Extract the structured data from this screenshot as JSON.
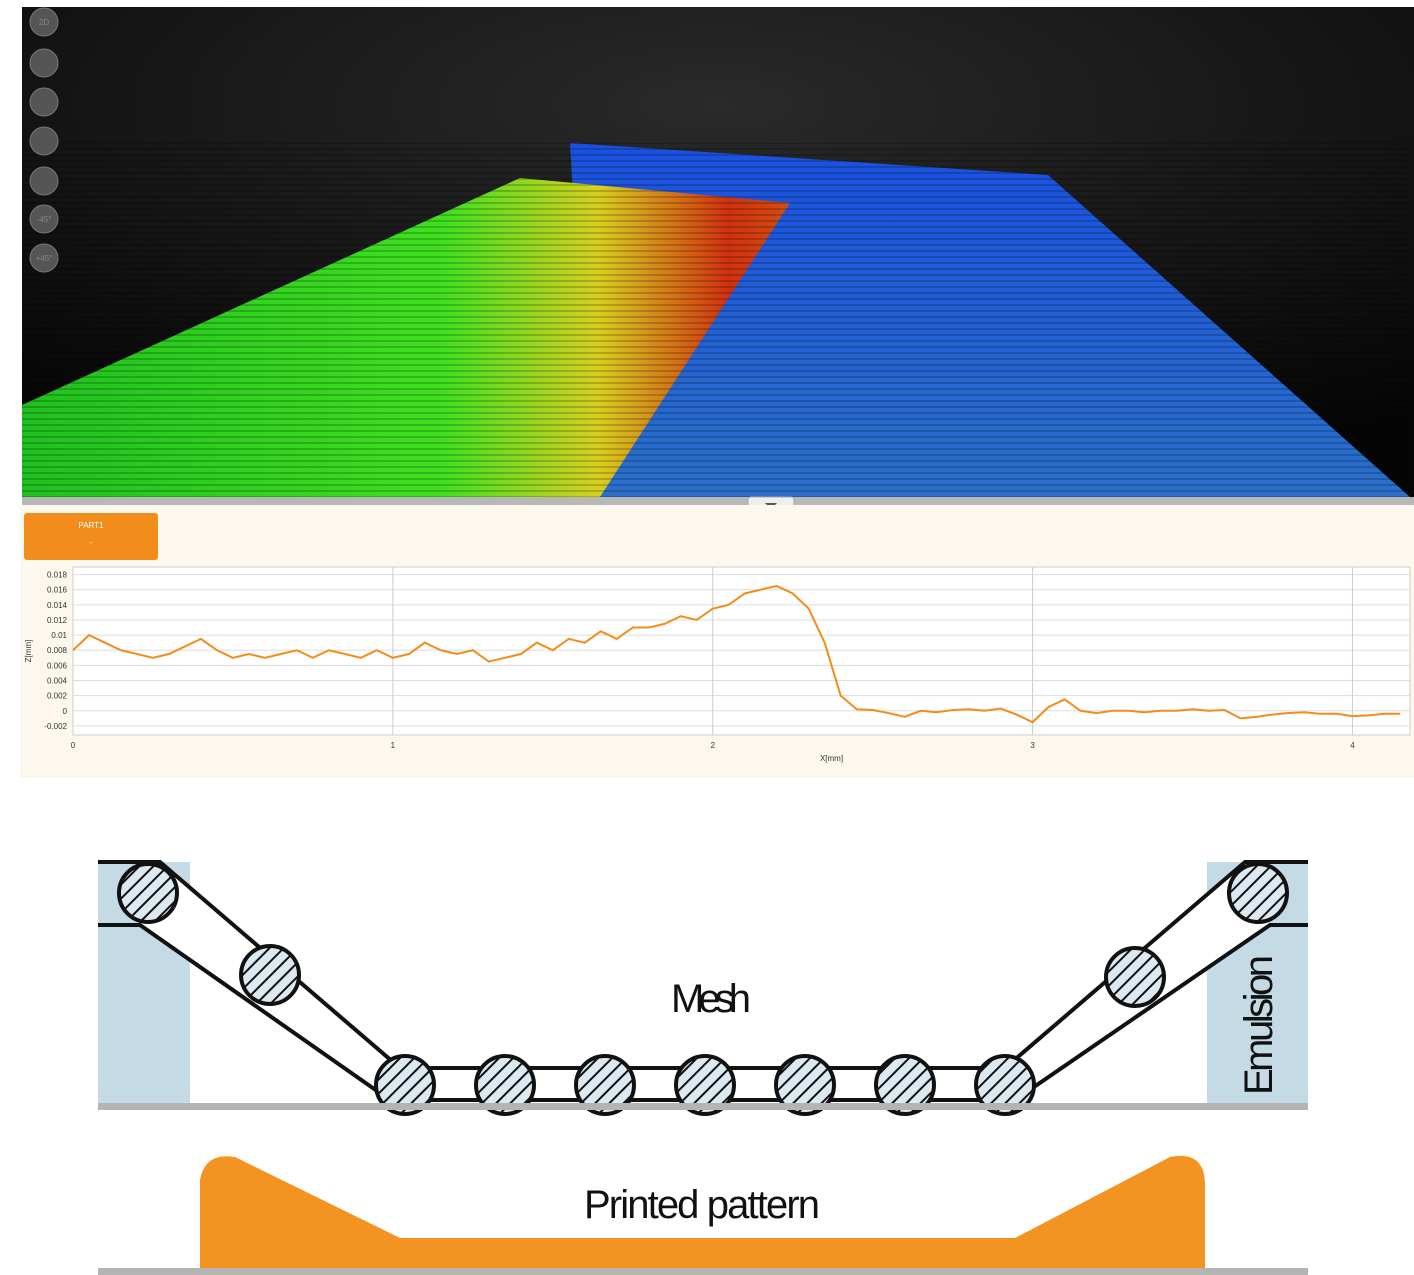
{
  "viewer": {
    "buttons": [
      "2D",
      "-45°",
      "+45°"
    ]
  },
  "panel": {
    "tab_title": "PART1",
    "tab_value": "-"
  },
  "chart_data": {
    "type": "line",
    "x_label": "X[mm]",
    "y_label": "Z[mm]",
    "x": [
      0,
      0.05,
      0.1,
      0.15,
      0.2,
      0.25,
      0.3,
      0.35,
      0.4,
      0.45,
      0.5,
      0.55,
      0.6,
      0.65,
      0.7,
      0.75,
      0.8,
      0.85,
      0.9,
      0.95,
      1.0,
      1.05,
      1.1,
      1.15,
      1.2,
      1.25,
      1.3,
      1.35,
      1.4,
      1.45,
      1.5,
      1.55,
      1.6,
      1.65,
      1.7,
      1.75,
      1.8,
      1.85,
      1.9,
      1.95,
      2.0,
      2.05,
      2.1,
      2.15,
      2.2,
      2.25,
      2.3,
      2.35,
      2.4,
      2.45,
      2.5,
      2.55,
      2.6,
      2.65,
      2.7,
      2.75,
      2.8,
      2.85,
      2.9,
      2.95,
      3.0,
      3.05,
      3.1,
      3.15,
      3.2,
      3.25,
      3.3,
      3.35,
      3.4,
      3.45,
      3.5,
      3.55,
      3.6,
      3.65,
      3.7,
      3.75,
      3.8,
      3.85,
      3.9,
      3.95,
      4.0,
      4.05,
      4.1,
      4.15
    ],
    "series": [
      {
        "name": "PART1",
        "color": "#f28c1b",
        "values": [
          0.008,
          0.01,
          0.009,
          0.008,
          0.0075,
          0.007,
          0.0075,
          0.0085,
          0.0095,
          0.008,
          0.007,
          0.0075,
          0.007,
          0.0075,
          0.008,
          0.007,
          0.008,
          0.0075,
          0.007,
          0.008,
          0.007,
          0.0075,
          0.009,
          0.008,
          0.0075,
          0.008,
          0.0065,
          0.007,
          0.0075,
          0.009,
          0.008,
          0.0095,
          0.009,
          0.0105,
          0.0095,
          0.011,
          0.011,
          0.0115,
          0.0125,
          0.012,
          0.0135,
          0.014,
          0.0155,
          0.016,
          0.0165,
          0.0155,
          0.0135,
          0.009,
          0.002,
          0.0002,
          0.0001,
          -0.0003,
          -0.0008,
          0.0,
          -0.0002,
          0.0001,
          0.0002,
          0.0,
          0.0003,
          -0.0005,
          -0.0015,
          0.0005,
          0.0015,
          0.0,
          -0.0003,
          0.0,
          0.0,
          -0.0002,
          0.0,
          0.0,
          0.0002,
          0.0,
          0.0001,
          -0.001,
          -0.0008,
          -0.0005,
          -0.0003,
          -0.0002,
          -0.0004,
          -0.0004,
          -0.0007,
          -0.0006,
          -0.0004,
          -0.0004
        ]
      }
    ],
    "xlim": [
      0,
      4.18
    ],
    "ylim": [
      -0.0032,
      0.019
    ],
    "xticks": [
      0,
      1,
      2,
      3,
      4
    ],
    "yticks": [
      0.018,
      0.016,
      0.014,
      0.012,
      0.01,
      0.008,
      0.006,
      0.004,
      0.002,
      0,
      -0.002
    ],
    "grid": true
  },
  "diagram": {
    "mesh_label": "Mesh",
    "emulsion_label": "Emulsion",
    "print_label": "Printed pattern"
  }
}
